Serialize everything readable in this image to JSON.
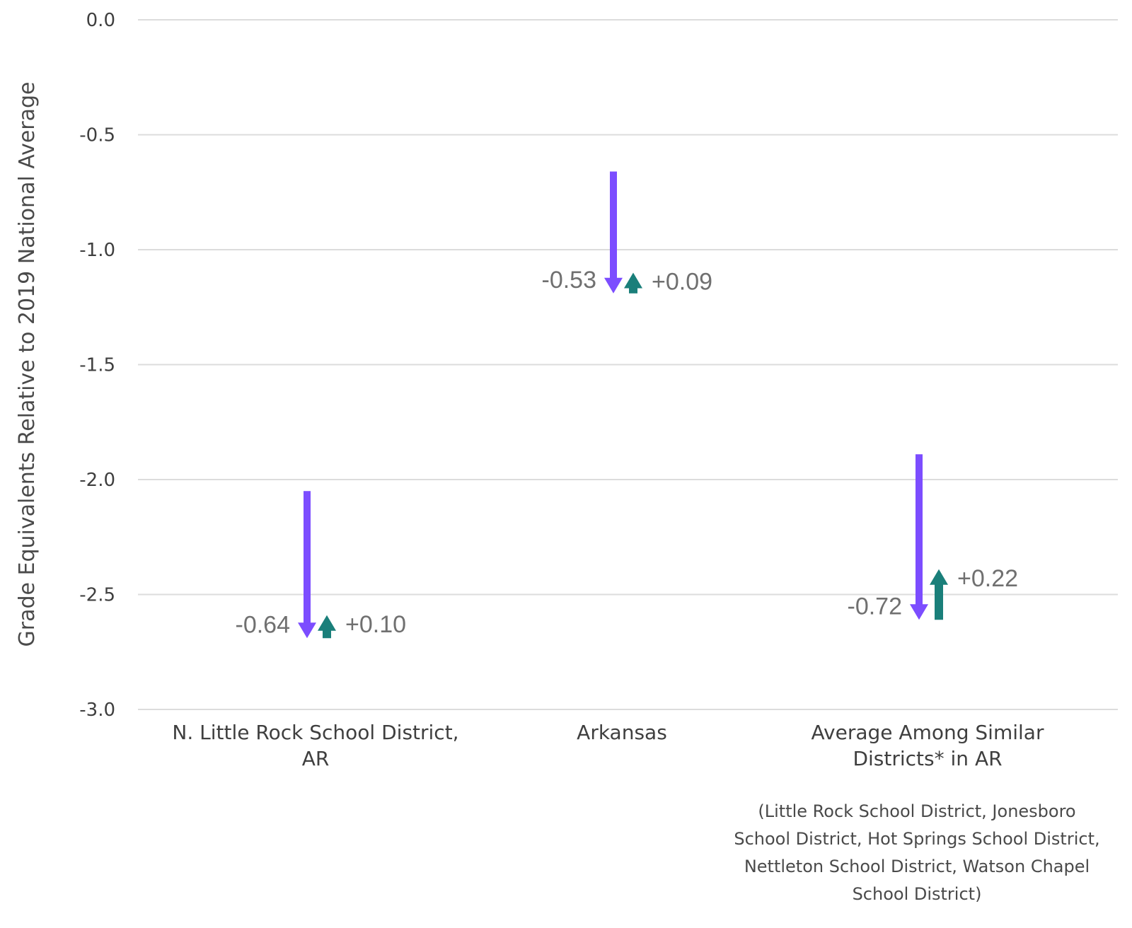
{
  "chart_data": {
    "type": "arrow",
    "ylabel": "Grade Equivalents Relative to 2019 National Average",
    "ylim": [
      -3.0,
      0.0
    ],
    "yticks": [
      0.0,
      -0.5,
      -1.0,
      -1.5,
      -2.0,
      -2.5,
      -3.0
    ],
    "ytick_labels": [
      "0.0",
      "-0.5",
      "-1.0",
      "-1.5",
      "-2.0",
      "-2.5",
      "-3.0"
    ],
    "grid": true,
    "colors": {
      "decline": "#7c4dff",
      "recovery": "#1a7f7a"
    },
    "categories": [
      {
        "label_lines": [
          "N. Little Rock School District,",
          "AR"
        ],
        "start": -2.05,
        "decline": -0.64,
        "decline_label": "-0.64",
        "recovery": 0.1,
        "recovery_label": "+0.10"
      },
      {
        "label_lines": [
          "Arkansas"
        ],
        "start": -0.66,
        "decline": -0.53,
        "decline_label": "-0.53",
        "recovery": 0.09,
        "recovery_label": "+0.09"
      },
      {
        "label_lines": [
          "Average Among Similar",
          "Districts* in AR"
        ],
        "start": -1.89,
        "decline": -0.72,
        "decline_label": "-0.72",
        "recovery": 0.22,
        "recovery_label": "+0.22"
      }
    ],
    "note_lines": [
      "(Little Rock School District, Jonesboro",
      "School District, Hot Springs School District,",
      "Nettleton School District, Watson Chapel",
      "School District)"
    ]
  }
}
